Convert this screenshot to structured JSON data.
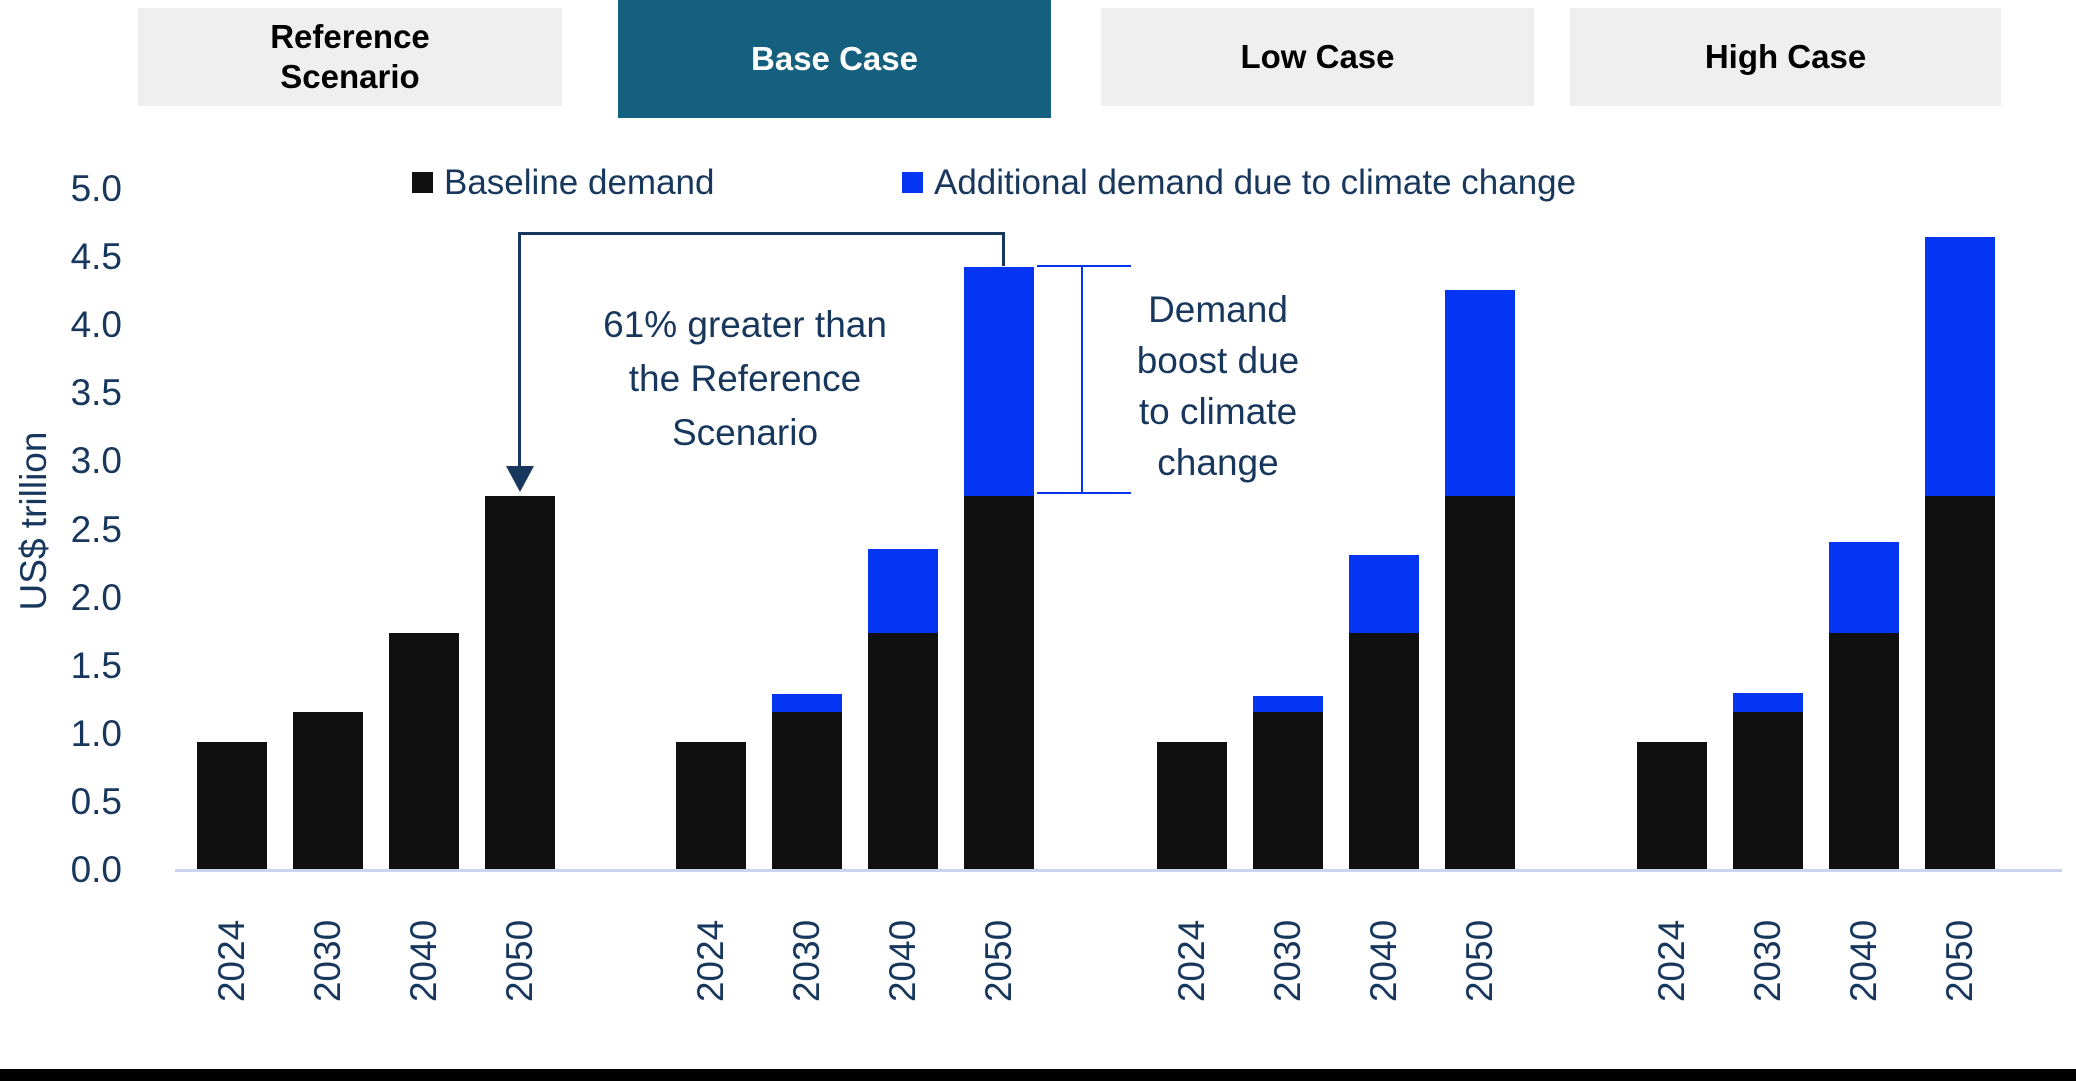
{
  "colors": {
    "navy": "#17375D",
    "bar_black": "#101010",
    "bar_blue": "#0435F2",
    "tab_active_teal": "#15607E",
    "tab_gray": "#EFEFEF",
    "axis_line": "#CBD3ED",
    "footer_bar": "#010101"
  },
  "tabs": [
    {
      "label": "Reference\nScenario",
      "active": false
    },
    {
      "label": "Base Case",
      "active": true
    },
    {
      "label": "Low Case",
      "active": false
    },
    {
      "label": "High Case",
      "active": false
    }
  ],
  "legend": [
    {
      "label": "Baseline demand",
      "color_key": "bar_black"
    },
    {
      "label": "Additional demand due to climate change",
      "color_key": "bar_blue"
    }
  ],
  "y_axis": {
    "title": "US$ trillion",
    "ticks": [
      "5.0",
      "4.5",
      "4.0",
      "3.5",
      "3.0",
      "2.5",
      "2.0",
      "1.5",
      "1.0",
      "0.5",
      "0.0"
    ]
  },
  "annotations": {
    "reference_comparison": "61% greater than\nthe Reference\nScenario",
    "climate_boost": "Demand\nboost due\nto climate\nchange"
  },
  "chart_data": {
    "type": "bar",
    "stacked": true,
    "title": "",
    "xlabel": "",
    "ylabel": "US$ trillion",
    "ylim": [
      0,
      5
    ],
    "grid": false,
    "legend_position": "top",
    "categories": [
      "2024",
      "2030",
      "2040",
      "2050"
    ],
    "groups": [
      {
        "name": "Reference Scenario",
        "series": [
          {
            "name": "Baseline demand",
            "values": [
              0.95,
              1.17,
              1.75,
              2.75
            ]
          },
          {
            "name": "Additional demand due to climate change",
            "values": [
              0,
              0,
              0,
              0
            ]
          }
        ]
      },
      {
        "name": "Base Case",
        "series": [
          {
            "name": "Baseline demand",
            "values": [
              0.95,
              1.17,
              1.75,
              2.75
            ]
          },
          {
            "name": "Additional demand due to climate change",
            "values": [
              0,
              0.13,
              0.62,
              1.68
            ]
          }
        ]
      },
      {
        "name": "Low Case",
        "series": [
          {
            "name": "Baseline demand",
            "values": [
              0.95,
              1.17,
              1.75,
              2.75
            ]
          },
          {
            "name": "Additional demand due to climate change",
            "values": [
              0,
              0.12,
              0.57,
              1.51
            ]
          }
        ]
      },
      {
        "name": "High Case",
        "series": [
          {
            "name": "Baseline demand",
            "values": [
              0.95,
              1.17,
              1.75,
              2.75
            ]
          },
          {
            "name": "Additional demand due to climate change",
            "values": [
              0,
              0.14,
              0.67,
              1.9
            ]
          }
        ]
      }
    ]
  }
}
